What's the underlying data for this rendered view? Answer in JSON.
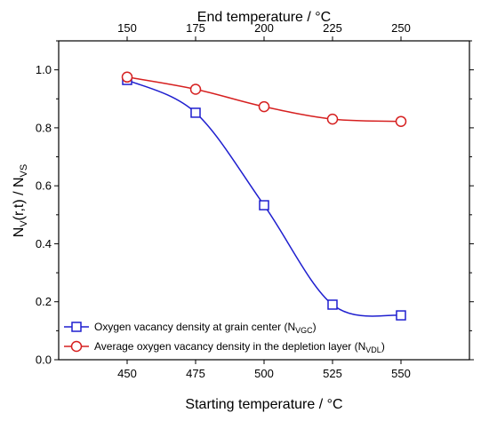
{
  "chart_data": {
    "type": "line",
    "xlabel": "Starting temperature / °C",
    "x2label": "End temperature / °C",
    "ylabel_parts": {
      "n": "N",
      "v1": "V",
      "mid": "(r,t) / N",
      "v2": "VS"
    },
    "x": [
      450,
      475,
      500,
      525,
      550
    ],
    "x_ticks": [
      "450",
      "475",
      "500",
      "525",
      "550"
    ],
    "x2_ticks": [
      "150",
      "175",
      "200",
      "225",
      "250"
    ],
    "xlim": [
      425,
      575
    ],
    "ylim": [
      0.0,
      1.1
    ],
    "y_ticks": [
      "0.0",
      "0.2",
      "0.4",
      "0.6",
      "0.8",
      "1.0"
    ],
    "series": [
      {
        "legend_main": "Oxygen vacancy density at grain center (N",
        "legend_sub": "VGC",
        "legend_end": ")",
        "marker": "square",
        "color": "#1f1fcf",
        "values": [
          0.965,
          0.852,
          0.533,
          0.19,
          0.153
        ]
      },
      {
        "legend_main": "Average oxygen vacancy density in the depletion layer (N",
        "legend_sub": "VDL",
        "legend_end": ")",
        "marker": "circle",
        "color": "#d62020",
        "values": [
          0.975,
          0.933,
          0.873,
          0.83,
          0.822
        ]
      }
    ]
  }
}
